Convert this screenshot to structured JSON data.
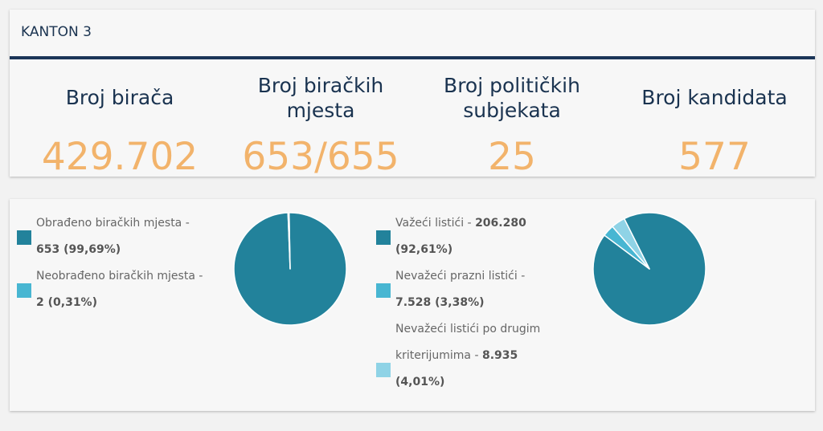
{
  "header": {
    "title": "KANTON 3"
  },
  "stats": [
    {
      "label_lines": [
        "Broj birača"
      ],
      "value": "429.702"
    },
    {
      "label_lines": [
        "Broj biračkih",
        "mjesta"
      ],
      "value": "653/655"
    },
    {
      "label_lines": [
        "Broj političkih",
        "subjekata"
      ],
      "value": "25"
    },
    {
      "label_lines": [
        "Broj kandidata"
      ],
      "value": "577"
    }
  ],
  "colors": {
    "navy": "#1b3558",
    "orange": "#f2b36b",
    "teal_dark": "#22829b",
    "teal_mid": "#48b6d2",
    "teal_light": "#8fd3e6"
  },
  "chart_data": [
    {
      "type": "pie",
      "title": "",
      "slices": [
        {
          "name": "Obrađeno biračkih mjesta",
          "value": 653,
          "percent": 99.69,
          "value_label": "653",
          "percent_label": "(99,69%)",
          "color": "#22829b"
        },
        {
          "name": "Neobrađeno biračkih mjesta",
          "value": 2,
          "percent": 0.31,
          "value_label": "2",
          "percent_label": "(0,31%)",
          "color": "#48b6d2"
        }
      ],
      "legend_lines": [
        [
          {
            "t": "Obrađeno biračkih mjesta -",
            "b": false
          }
        ],
        [
          {
            "t": "653 (99,69%)",
            "b": true
          }
        ],
        [
          {
            "t": "Neobrađeno biračkih mjesta -",
            "b": false
          }
        ],
        [
          {
            "t": "2 (0,31%)",
            "b": true
          }
        ]
      ]
    },
    {
      "type": "pie",
      "title": "",
      "slices": [
        {
          "name": "Važeći listići",
          "value": 206280,
          "percent": 92.61,
          "value_label": "206.280",
          "percent_label": "(92,61%)",
          "color": "#22829b"
        },
        {
          "name": "Nevažeći prazni listići",
          "value": 7528,
          "percent": 3.38,
          "value_label": "7.528",
          "percent_label": "(3,38%)",
          "color": "#48b6d2"
        },
        {
          "name": "Nevažeći listići po drugim kriterijumima",
          "value": 8935,
          "percent": 4.01,
          "value_label": "8.935",
          "percent_label": "(4,01%)",
          "color": "#8fd3e6"
        }
      ],
      "legend_lines": [
        [
          {
            "t": "Važeći listići - ",
            "b": false
          },
          {
            "t": "206.280",
            "b": true
          }
        ],
        [
          {
            "t": "(92,61%)",
            "b": true
          }
        ],
        [
          {
            "t": "Nevažeći prazni listići -",
            "b": false
          }
        ],
        [
          {
            "t": "7.528 (3,38%)",
            "b": true
          }
        ],
        [
          {
            "t": "Nevažeći listići po drugim",
            "b": false
          }
        ],
        [
          {
            "t": "kriterijumima - ",
            "b": false
          },
          {
            "t": "8.935",
            "b": true
          }
        ],
        [
          {
            "t": "(4,01%)",
            "b": true
          }
        ]
      ]
    }
  ]
}
